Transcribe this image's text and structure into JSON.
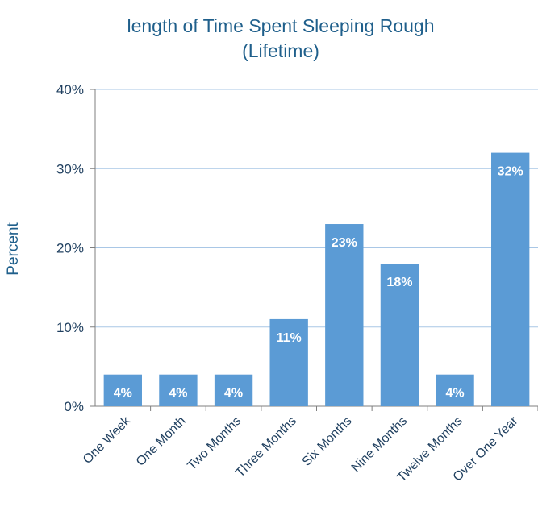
{
  "chart_data": {
    "type": "bar",
    "title_lines": [
      "length of Time Spent Sleeping Rough",
      "(Lifetime)"
    ],
    "xlabel": "",
    "ylabel": "Percent",
    "categories": [
      "One Week",
      "One Month",
      "Two Months",
      "Three Months",
      "Six Months",
      "Nine Months",
      "Twelve Months",
      "Over One Year"
    ],
    "values": [
      4,
      4,
      4,
      11,
      23,
      18,
      4,
      32
    ],
    "data_labels": [
      "4%",
      "4%",
      "4%",
      "11%",
      "23%",
      "18%",
      "4%",
      "32%"
    ],
    "yticks": [
      0,
      10,
      20,
      30,
      40
    ],
    "ytick_labels": [
      "0%",
      "10%",
      "20%",
      "30%",
      "40%"
    ],
    "ylim": [
      0,
      40
    ],
    "grid": true,
    "bar_color": "#5b9bd5",
    "grid_color": "#a9c7e6",
    "text_color": "#1f5f8b"
  }
}
